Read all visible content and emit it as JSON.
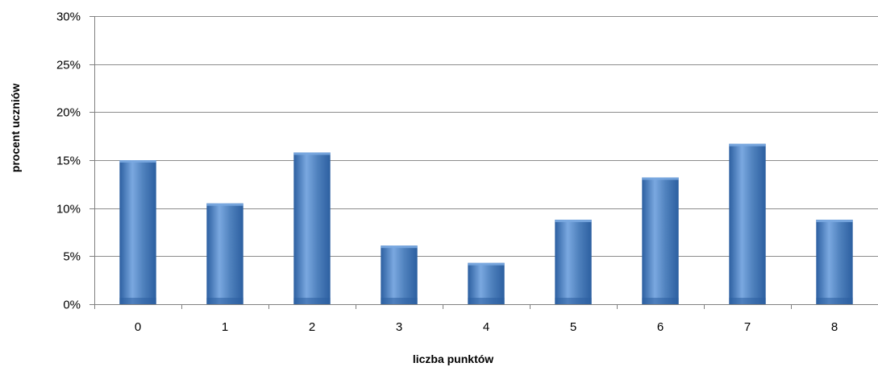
{
  "chart_data": {
    "type": "bar",
    "title": "",
    "xlabel": "liczba punktów",
    "ylabel": "procent uczniów",
    "categories": [
      "0",
      "1",
      "2",
      "3",
      "4",
      "5",
      "6",
      "7",
      "8"
    ],
    "values": [
      15.0,
      10.5,
      15.8,
      6.1,
      4.3,
      8.8,
      13.2,
      16.7,
      8.8
    ],
    "ylim": [
      0,
      30
    ],
    "yticks": [
      0,
      5,
      10,
      15,
      20,
      25,
      30
    ],
    "ytick_labels": [
      "0%",
      "5%",
      "10%",
      "15%",
      "20%",
      "25%",
      "30%"
    ],
    "grid": true,
    "legend": "none",
    "colors": {
      "bar": "#4f81bd",
      "bar_dark": "#2c5fa0",
      "bar_light": "#7aa8e0",
      "grid": "#8c8c8c",
      "axis": "#808080"
    }
  }
}
